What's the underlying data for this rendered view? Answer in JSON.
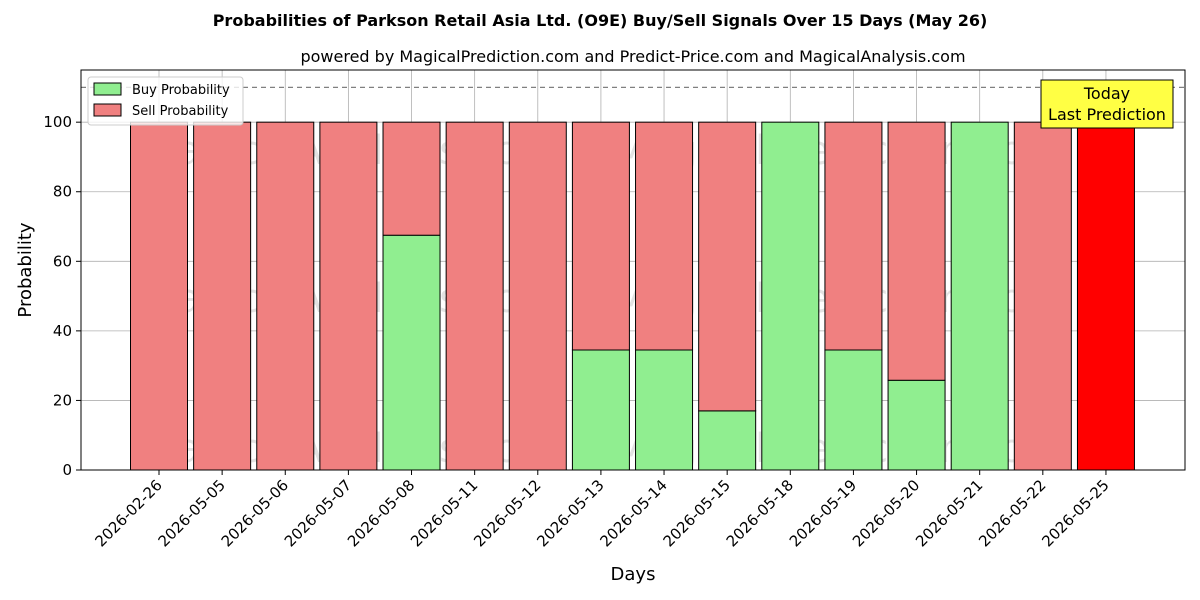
{
  "chart_data": {
    "type": "bar",
    "stacked": true,
    "title": "Probabilities of Parkson Retail Asia Ltd. (O9E) Buy/Sell Signals Over 15 Days (May 26)",
    "subtitle": "powered by MagicalPrediction.com and Predict-Price.com and MagicalAnalysis.com",
    "xlabel": "Days",
    "ylabel": "Probability",
    "ylim": [
      0,
      115
    ],
    "yticks": [
      0,
      20,
      40,
      60,
      80,
      100
    ],
    "reference_line": 110,
    "grid": true,
    "legend_position": "top-left",
    "categories": [
      "2026-02-26",
      "2026-05-05",
      "2026-05-06",
      "2026-05-07",
      "2026-05-08",
      "2026-05-11",
      "2026-05-12",
      "2026-05-13",
      "2026-05-14",
      "2026-05-15",
      "2026-05-18",
      "2026-05-19",
      "2026-05-20",
      "2026-05-21",
      "2026-05-22",
      "2026-05-25"
    ],
    "series": [
      {
        "name": "Buy Probability",
        "color": "#90ee90",
        "values": [
          0,
          0,
          0,
          0,
          67.5,
          0,
          0,
          34.5,
          34.5,
          17,
          100,
          34.5,
          25.8,
          100,
          0,
          0
        ]
      },
      {
        "name": "Sell Probability",
        "color": "#f08080",
        "values": [
          100,
          100,
          100,
          100,
          32.5,
          100,
          100,
          65.5,
          65.5,
          83,
          0,
          65.5,
          74.2,
          0,
          100,
          100
        ]
      }
    ],
    "highlight": {
      "index": 15,
      "color": "#ff0000"
    },
    "annotation": {
      "line1": "Today",
      "line2": "Last Prediction",
      "color": "#ffff44"
    },
    "watermarks": [
      "MagicalAnalysis.com",
      "MagicalPrediction.com"
    ]
  }
}
